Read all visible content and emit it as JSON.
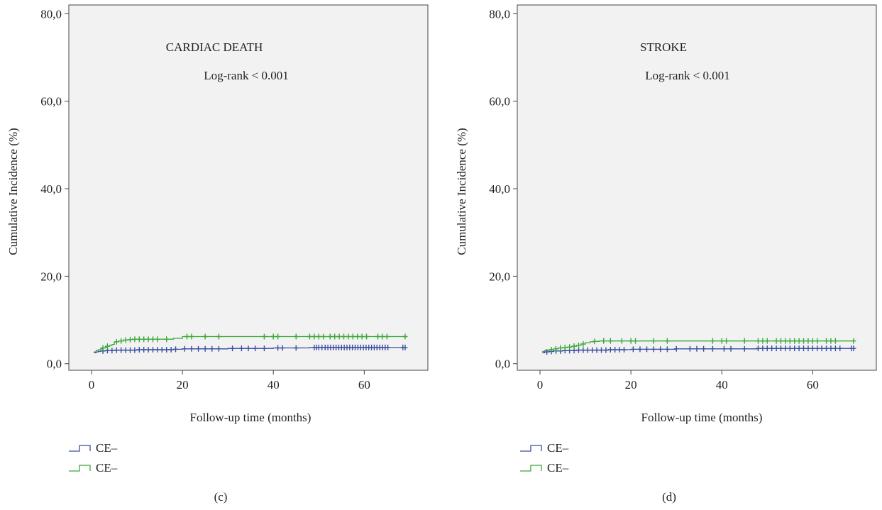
{
  "chart_data": [
    {
      "type": "line",
      "step": true,
      "panel_label": "(c)",
      "title": "CARDIAC DEATH",
      "annotation": "Log-rank < 0.001",
      "xlabel": "Follow-up time (months)",
      "ylabel": "Cumulative Incidence (%)",
      "xlim": [
        -5,
        74
      ],
      "ylim": [
        -1.5,
        82
      ],
      "xticks": [
        0,
        20,
        40,
        60
      ],
      "xtick_labels": [
        "0",
        "20",
        "40",
        "60"
      ],
      "yticks": [
        0,
        20,
        40,
        60,
        80
      ],
      "ytick_labels": [
        "0,0",
        "20,0",
        "40,0",
        "60,0",
        "80,0"
      ],
      "grid": false,
      "legend_position": "bottom-left",
      "background": "#f2f2f2",
      "series": [
        {
          "name": "CE–",
          "color": "#3a4ea0",
          "x": [
            0.5,
            1.0,
            1.5,
            2.0,
            3.0,
            5.0,
            10.0,
            18.0,
            20.0,
            30.0,
            40.0,
            48.0,
            69.0
          ],
          "y": [
            2.5,
            2.7,
            2.8,
            2.9,
            3.0,
            3.1,
            3.2,
            3.3,
            3.4,
            3.5,
            3.6,
            3.7,
            3.7
          ],
          "censor_x": [
            2.5,
            3.5,
            4.5,
            5.5,
            6.5,
            7.5,
            8.5,
            9.5,
            10.5,
            11.5,
            12.5,
            13.5,
            14.5,
            15.5,
            16.5,
            17.5,
            18.5,
            20.5,
            22,
            23.5,
            25,
            26.5,
            28,
            31,
            33,
            34.5,
            36,
            38,
            41,
            42,
            45,
            49,
            49.5,
            50,
            50.7,
            51.4,
            52,
            52.6,
            53.2,
            53.8,
            54.4,
            55,
            55.6,
            56.2,
            56.8,
            57.4,
            58,
            58.6,
            59.2,
            59.8,
            60.4,
            61,
            61.6,
            62.2,
            62.8,
            63.4,
            64,
            64.6,
            65.2,
            68.5,
            69
          ]
        },
        {
          "name": "CE–",
          "color": "#3aa83a",
          "x": [
            0.5,
            1.0,
            1.5,
            2.0,
            2.5,
            3.0,
            3.5,
            4.0,
            4.5,
            5.0,
            6.0,
            7.0,
            8.0,
            9.0,
            18.0,
            20.0,
            69.0
          ],
          "y": [
            2.7,
            3.0,
            3.2,
            3.4,
            3.6,
            3.8,
            4.0,
            4.2,
            4.4,
            5.0,
            5.2,
            5.4,
            5.5,
            5.6,
            5.8,
            6.2,
            6.2
          ],
          "censor_x": [
            2.5,
            3.5,
            5.5,
            6.5,
            7.5,
            8.5,
            9.5,
            10.5,
            11.5,
            12.5,
            13.5,
            14.5,
            16.5,
            21,
            22,
            25,
            28,
            38,
            40,
            41,
            45,
            48,
            49,
            50,
            51,
            52.5,
            53.5,
            54.5,
            55.5,
            56.5,
            57.5,
            58.5,
            59.5,
            60.5,
            63,
            64,
            65,
            69
          ]
        }
      ]
    },
    {
      "type": "line",
      "step": true,
      "panel_label": "(d)",
      "title": "STROKE",
      "annotation": "Log-rank < 0.001",
      "xlabel": "Follow-up time (months)",
      "ylabel": "Cumulative Incidence (%)",
      "xlim": [
        -5,
        74
      ],
      "ylim": [
        -1.5,
        82
      ],
      "xticks": [
        0,
        20,
        40,
        60
      ],
      "xtick_labels": [
        "0",
        "20",
        "40",
        "60"
      ],
      "yticks": [
        0,
        20,
        40,
        60,
        80
      ],
      "ytick_labels": [
        "0,0",
        "20,0",
        "40,0",
        "60,0",
        "80,0"
      ],
      "grid": false,
      "legend_position": "bottom-left",
      "background": "#f2f2f2",
      "series": [
        {
          "name": "CE–",
          "color": "#3a4ea0",
          "x": [
            0.5,
            1.0,
            2.0,
            3.0,
            5.0,
            8.0,
            15.0,
            20.0,
            30.0,
            48.0,
            69.0
          ],
          "y": [
            2.5,
            2.7,
            2.8,
            2.9,
            3.0,
            3.1,
            3.2,
            3.3,
            3.4,
            3.5,
            3.5
          ],
          "censor_x": [
            1.5,
            2.5,
            3.5,
            4.5,
            5.5,
            6.5,
            7.5,
            8.5,
            9.5,
            10.5,
            11.5,
            12.5,
            13.5,
            14.5,
            15.5,
            16.5,
            17.5,
            18.5,
            20.5,
            22,
            23.5,
            25,
            26.5,
            28,
            30,
            33,
            34.5,
            36,
            38,
            40.5,
            42,
            45,
            48,
            49,
            50,
            51,
            52,
            53,
            54,
            55,
            56,
            57,
            58,
            59,
            60,
            61,
            62,
            63,
            64,
            65,
            66,
            68.5,
            69
          ]
        },
        {
          "name": "CE–",
          "color": "#3aa83a",
          "x": [
            0.5,
            1.0,
            2.0,
            3.0,
            4.0,
            5.0,
            6.0,
            7.0,
            8.0,
            9.0,
            10.0,
            11.0,
            12.0,
            13.0,
            69.0
          ],
          "y": [
            2.8,
            3.0,
            3.2,
            3.4,
            3.6,
            3.7,
            3.8,
            4.0,
            4.2,
            4.5,
            4.8,
            5.0,
            5.1,
            5.2,
            5.2
          ],
          "censor_x": [
            2.5,
            3.5,
            4.5,
            5.5,
            6.5,
            7.5,
            8.5,
            9.5,
            12,
            14,
            15.5,
            18,
            20,
            21,
            25,
            28,
            38,
            40,
            41,
            45,
            48,
            49,
            50,
            52,
            53,
            54,
            55,
            56,
            57,
            58,
            59,
            60,
            61,
            63,
            64,
            65,
            69
          ]
        }
      ]
    }
  ]
}
